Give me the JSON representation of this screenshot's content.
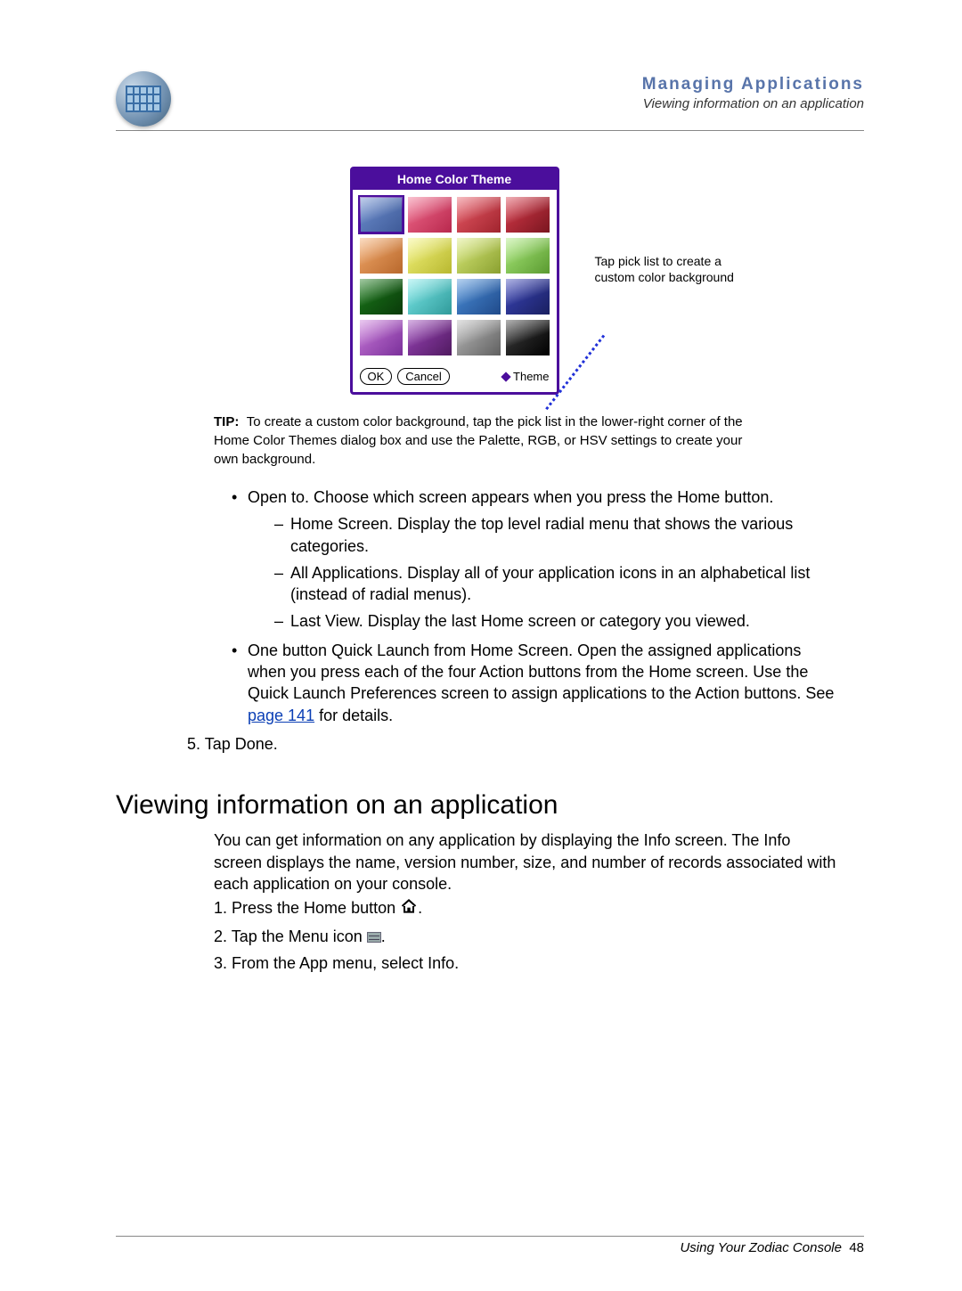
{
  "header": {
    "title": "Managing Applications",
    "subtitle": "Viewing information on an application"
  },
  "dialog": {
    "title": "Home Color Theme",
    "ok": "OK",
    "cancel": "Cancel",
    "theme_label": "Theme",
    "swatches": [
      {
        "c1": "#6d8ecf",
        "c2": "#3e5a97",
        "selected": true
      },
      {
        "c1": "#f06a8c",
        "c2": "#b8284d"
      },
      {
        "c1": "#e85a66",
        "c2": "#a0242e"
      },
      {
        "c1": "#d83a4a",
        "c2": "#7a1620"
      },
      {
        "c1": "#f2a86a",
        "c2": "#b8682c"
      },
      {
        "c1": "#f3f37a",
        "c2": "#b8b830"
      },
      {
        "c1": "#d8e878",
        "c2": "#8aa030"
      },
      {
        "c1": "#a8e878",
        "c2": "#5a9a30"
      },
      {
        "c1": "#1a7a1a",
        "c2": "#0a3a0a"
      },
      {
        "c1": "#7ae8e8",
        "c2": "#309a9a"
      },
      {
        "c1": "#4a8ed8",
        "c2": "#204a8a"
      },
      {
        "c1": "#3a44b8",
        "c2": "#1a2060"
      },
      {
        "c1": "#c878d8",
        "c2": "#7a309a"
      },
      {
        "c1": "#9a44b8",
        "c2": "#501a60"
      },
      {
        "c1": "#b8b8b8",
        "c2": "#606060"
      },
      {
        "c1": "#404040",
        "c2": "#000000"
      }
    ]
  },
  "callout": "Tap pick list to create a custom color background",
  "tip": {
    "label": "TIP:",
    "text": "To create a custom color background, tap the pick list in the lower-right corner of the Home Color Themes dialog box and use the Palette, RGB, or HSV settings to create your own background."
  },
  "bullets": {
    "open_to": "Open to. Choose which screen appears when you press the Home button.",
    "home_screen": "Home Screen. Display the top level radial menu that shows the various categories.",
    "all_apps": "All Applications. Display all of your application icons in an alphabetical list (instead of radial menus).",
    "last_view": "Last View. Display the last Home screen or category you viewed.",
    "quick_launch_pre": "One button Quick Launch from Home Screen. Open the assigned applications when you press each of the four Action buttons from the Home screen. Use the Quick Launch Preferences screen to assign applications to the Action buttons. See ",
    "link": "page 141",
    "quick_launch_post": " for details."
  },
  "step5": "5. Tap Done.",
  "section_heading": "Viewing information on an application",
  "section_para": "You can get information on any application by displaying the Info screen. The Info screen displays the name, version number, size, and number of records associated with each application on your console.",
  "steps": {
    "s1a": "1. Press the Home button ",
    "s1b": ".",
    "s2a": "2. Tap the Menu icon ",
    "s2b": ".",
    "s3": "3. From the App menu, select Info."
  },
  "footer": {
    "text": "Using Your Zodiac Console",
    "page": "48"
  }
}
